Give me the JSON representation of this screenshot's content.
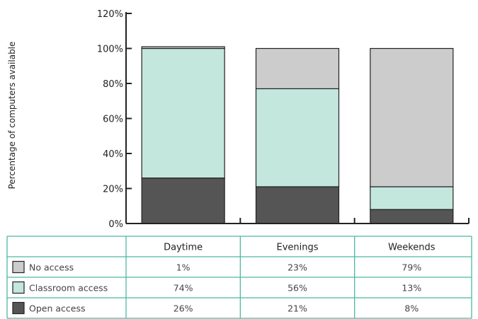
{
  "chart_data": {
    "type": "bar",
    "stacked": true,
    "title": "",
    "xlabel": "",
    "ylabel": "Percentage of computers available",
    "ylim": [
      0,
      120
    ],
    "yticks": [
      "0%",
      "20%",
      "40%",
      "60%",
      "80%",
      "100%",
      "120%"
    ],
    "categories": [
      "Daytime",
      "Evenings",
      "Weekends"
    ],
    "series": [
      {
        "name": "Open access",
        "values": [
          26,
          21,
          8
        ],
        "labels": [
          "26%",
          "21%",
          "8%"
        ],
        "color": "#555555"
      },
      {
        "name": "Classroom access",
        "values": [
          74,
          56,
          13
        ],
        "labels": [
          "74%",
          "56%",
          "13%"
        ],
        "color": "#c3e6dd"
      },
      {
        "name": "No access",
        "values": [
          1,
          23,
          79
        ],
        "labels": [
          "1%",
          "23%",
          "79%"
        ],
        "color": "#cccccc"
      }
    ],
    "grid": false,
    "legend": "data-table-below",
    "table_order": [
      "No access",
      "Classroom access",
      "Open access"
    ],
    "colors": {
      "table_border": "#4db8a0",
      "axis": "#222222",
      "bar_outline": "#222222"
    }
  }
}
